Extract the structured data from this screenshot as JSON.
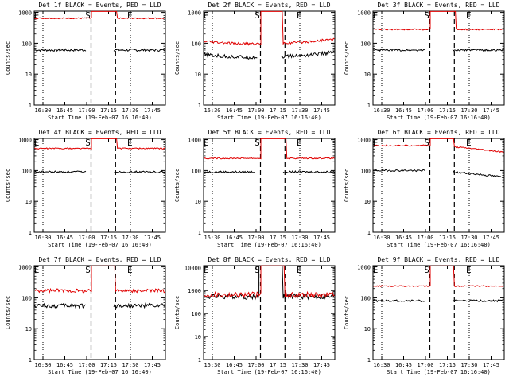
{
  "figure": {
    "colors": {
      "events": "#000000",
      "lld": "#e00000",
      "axis": "#000000",
      "background": "#ffffff"
    }
  },
  "chart_data": [
    {
      "type": "line",
      "title": "Det 1f BLACK = Events, RED = LLD",
      "ylabel": "Counts/sec",
      "xlabel": "Start Time (19-Feb-07 16:16:40)",
      "xticks": [
        "16:30",
        "16:45",
        "17:00",
        "17:15",
        "17:30",
        "17:45"
      ],
      "yticks": [
        "1",
        "10",
        "100",
        "1000"
      ],
      "ylim": [
        1,
        1100
      ],
      "xlim_min": [
        16.4,
        17.9
      ],
      "markers": [
        {
          "label": "S",
          "time_min": 17.05
        },
        {
          "label": "E",
          "time_min": 17.33
        }
      ],
      "dotted_times": [
        "16:30",
        "17:30"
      ],
      "series": [
        {
          "name": "Events",
          "color": "#000000",
          "level": 60,
          "jitter": 0.04,
          "curve": "flat",
          "gap": [
            17.0,
            17.3
          ]
        },
        {
          "name": "LLD",
          "color": "#e00000",
          "level": 650,
          "jitter": 0.02,
          "curve": "flat",
          "gap": [
            17.05,
            17.35
          ],
          "spike": true
        }
      ]
    },
    {
      "type": "line",
      "title": "Det 2f BLACK = Events, RED = LLD",
      "ylabel": "Counts/sec",
      "xlabel": "Start Time (19-Feb-07 16:16:40)",
      "xticks": [
        "16:30",
        "16:45",
        "17:00",
        "17:15",
        "17:30",
        "17:45"
      ],
      "yticks": [
        "1",
        "10",
        "100",
        "1000"
      ],
      "ylim": [
        1,
        1100
      ],
      "xlim_min": [
        16.4,
        17.9
      ],
      "markers": [
        {
          "label": "S",
          "time_min": 17.05
        },
        {
          "label": "E",
          "time_min": 17.33
        }
      ],
      "dotted_times": [
        "16:30",
        "17:30"
      ],
      "series": [
        {
          "name": "Events",
          "color": "#000000",
          "level": 35,
          "jitter": 0.06,
          "curve": "dip",
          "gap": [
            17.02,
            17.28
          ]
        },
        {
          "name": "LLD",
          "color": "#e00000",
          "level": 95,
          "jitter": 0.04,
          "curve": "dip",
          "gap": [
            17.05,
            17.3
          ],
          "spike": true
        }
      ]
    },
    {
      "type": "line",
      "title": "Det 3f BLACK = Events, RED = LLD",
      "ylabel": "Counts/sec",
      "xlabel": "Start Time (19-Feb-07 16:16:40)",
      "xticks": [
        "16:30",
        "16:45",
        "17:00",
        "17:15",
        "17:30",
        "17:45"
      ],
      "yticks": [
        "1",
        "10",
        "100",
        "1000"
      ],
      "ylim": [
        1,
        1100
      ],
      "xlim_min": [
        16.4,
        17.9
      ],
      "markers": [
        {
          "label": "S",
          "time_min": 17.05
        },
        {
          "label": "E",
          "time_min": 17.33
        }
      ],
      "dotted_times": [
        "16:30",
        "17:30"
      ],
      "series": [
        {
          "name": "Events",
          "color": "#000000",
          "level": 60,
          "jitter": 0.03,
          "curve": "flat",
          "gap": [
            17.0,
            17.3
          ]
        },
        {
          "name": "LLD",
          "color": "#e00000",
          "level": 280,
          "jitter": 0.02,
          "curve": "flat",
          "gap": [
            17.05,
            17.35
          ],
          "spike": true
        }
      ]
    },
    {
      "type": "line",
      "title": "Det 4f BLACK = Events, RED = LLD",
      "ylabel": "Counts/sec",
      "xlabel": "Start Time (19-Feb-07 16:16:40)",
      "xticks": [
        "16:30",
        "16:45",
        "17:00",
        "17:15",
        "17:30",
        "17:45"
      ],
      "yticks": [
        "1",
        "10",
        "100",
        "1000"
      ],
      "ylim": [
        1,
        1100
      ],
      "xlim_min": [
        16.4,
        17.9
      ],
      "markers": [
        {
          "label": "S",
          "time_min": 17.05
        },
        {
          "label": "E",
          "time_min": 17.33
        }
      ],
      "dotted_times": [
        "16:30",
        "17:30"
      ],
      "series": [
        {
          "name": "Events",
          "color": "#000000",
          "level": 90,
          "jitter": 0.03,
          "curve": "flat",
          "gap": [
            17.0,
            17.3
          ]
        },
        {
          "name": "LLD",
          "color": "#e00000",
          "level": 520,
          "jitter": 0.02,
          "curve": "flat",
          "gap": [
            17.05,
            17.35
          ],
          "spike": true
        }
      ]
    },
    {
      "type": "line",
      "title": "Det 5f BLACK = Events, RED = LLD",
      "ylabel": "Counts/sec",
      "xlabel": "Start Time (19-Feb-07 16:16:40)",
      "xticks": [
        "16:30",
        "16:45",
        "17:00",
        "17:15",
        "17:30",
        "17:45"
      ],
      "yticks": [
        "1",
        "10",
        "100",
        "1000"
      ],
      "ylim": [
        1,
        1100
      ],
      "xlim_min": [
        16.4,
        17.9
      ],
      "markers": [
        {
          "label": "S",
          "time_min": 17.05
        },
        {
          "label": "E",
          "time_min": 17.33
        }
      ],
      "dotted_times": [
        "16:30",
        "17:30"
      ],
      "series": [
        {
          "name": "Events",
          "color": "#000000",
          "level": 90,
          "jitter": 0.03,
          "curve": "flat",
          "gap": [
            17.0,
            17.3
          ]
        },
        {
          "name": "LLD",
          "color": "#e00000",
          "level": 250,
          "jitter": 0.02,
          "curve": "flat",
          "gap": [
            17.05,
            17.35
          ],
          "spike": true
        }
      ]
    },
    {
      "type": "line",
      "title": "Det 6f BLACK = Events, RED = LLD",
      "ylabel": "Counts/sec",
      "xlabel": "Start Time (19-Feb-07 16:16:40)",
      "xticks": [
        "16:30",
        "16:45",
        "17:00",
        "17:15",
        "17:30",
        "17:45"
      ],
      "yticks": [
        "1",
        "10",
        "100",
        "1000"
      ],
      "ylim": [
        1,
        1100
      ],
      "xlim_min": [
        16.4,
        17.9
      ],
      "markers": [
        {
          "label": "S",
          "time_min": 17.05
        },
        {
          "label": "E",
          "time_min": 17.33
        }
      ],
      "dotted_times": [
        "16:30",
        "17:30"
      ],
      "series": [
        {
          "name": "Events",
          "color": "#000000",
          "level": 100,
          "jitter": 0.03,
          "curve": "decay",
          "gap": [
            17.0,
            17.3
          ]
        },
        {
          "name": "LLD",
          "color": "#e00000",
          "level": 650,
          "jitter": 0.02,
          "curve": "decay",
          "gap": [
            17.05,
            17.33
          ],
          "spike": true
        }
      ]
    },
    {
      "type": "line",
      "title": "Det 7f BLACK = Events, RED = LLD",
      "ylabel": "Counts/sec",
      "xlabel": "Start Time (19-Feb-07 16:16:40)",
      "xticks": [
        "16:30",
        "16:45",
        "17:00",
        "17:15",
        "17:30",
        "17:45"
      ],
      "yticks": [
        "1",
        "10",
        "100",
        "1000"
      ],
      "ylim": [
        1,
        1100
      ],
      "xlim_min": [
        16.4,
        17.9
      ],
      "markers": [
        {
          "label": "S",
          "time_min": 17.05
        },
        {
          "label": "E",
          "time_min": 17.33
        }
      ],
      "dotted_times": [
        "16:30",
        "17:30"
      ],
      "series": [
        {
          "name": "Events",
          "color": "#000000",
          "level": 55,
          "jitter": 0.07,
          "curve": "flat",
          "gap": [
            17.0,
            17.3
          ]
        },
        {
          "name": "LLD",
          "color": "#e00000",
          "level": 170,
          "jitter": 0.06,
          "curve": "flat",
          "gap": [
            17.05,
            17.33
          ],
          "spike": true
        }
      ]
    },
    {
      "type": "line",
      "title": "Det 8f BLACK = Events, RED = LLD",
      "ylabel": "Counts/sec",
      "xlabel": "Start Time (19-Feb-07 16:16:40)",
      "xticks": [
        "16:30",
        "16:45",
        "17:00",
        "17:15",
        "17:30",
        "17:45"
      ],
      "yticks": [
        "1",
        "10",
        "100",
        "1000",
        "10000"
      ],
      "ylim": [
        1,
        12000
      ],
      "xlim_min": [
        16.4,
        17.9
      ],
      "markers": [
        {
          "label": "S",
          "time_min": 17.05
        },
        {
          "label": "E",
          "time_min": 17.33
        }
      ],
      "dotted_times": [
        "16:30",
        "17:30"
      ],
      "series": [
        {
          "name": "Events",
          "color": "#000000",
          "level": 550,
          "jitter": 0.12,
          "curve": "flat",
          "gap": [
            17.03,
            17.3
          ],
          "spike": true
        },
        {
          "name": "LLD",
          "color": "#e00000",
          "level": 650,
          "jitter": 0.12,
          "curve": "flat",
          "gap": [
            17.05,
            17.33
          ],
          "spike": true
        }
      ]
    },
    {
      "type": "line",
      "title": "Det 9f BLACK = Events, RED = LLD",
      "ylabel": "Counts/sec",
      "xlabel": "Start Time (19-Feb-07 16:16:40)",
      "xticks": [
        "16:30",
        "16:45",
        "17:00",
        "17:15",
        "17:30",
        "17:45"
      ],
      "yticks": [
        "1",
        "10",
        "100",
        "1000"
      ],
      "ylim": [
        1,
        1100
      ],
      "xlim_min": [
        16.4,
        17.9
      ],
      "markers": [
        {
          "label": "S",
          "time_min": 17.05
        },
        {
          "label": "E",
          "time_min": 17.33
        }
      ],
      "dotted_times": [
        "16:30",
        "17:30"
      ],
      "series": [
        {
          "name": "Events",
          "color": "#000000",
          "level": 80,
          "jitter": 0.03,
          "curve": "flat",
          "gap": [
            17.0,
            17.3
          ]
        },
        {
          "name": "LLD",
          "color": "#e00000",
          "level": 240,
          "jitter": 0.02,
          "curve": "flat",
          "gap": [
            17.05,
            17.33
          ],
          "spike": true
        }
      ]
    }
  ]
}
